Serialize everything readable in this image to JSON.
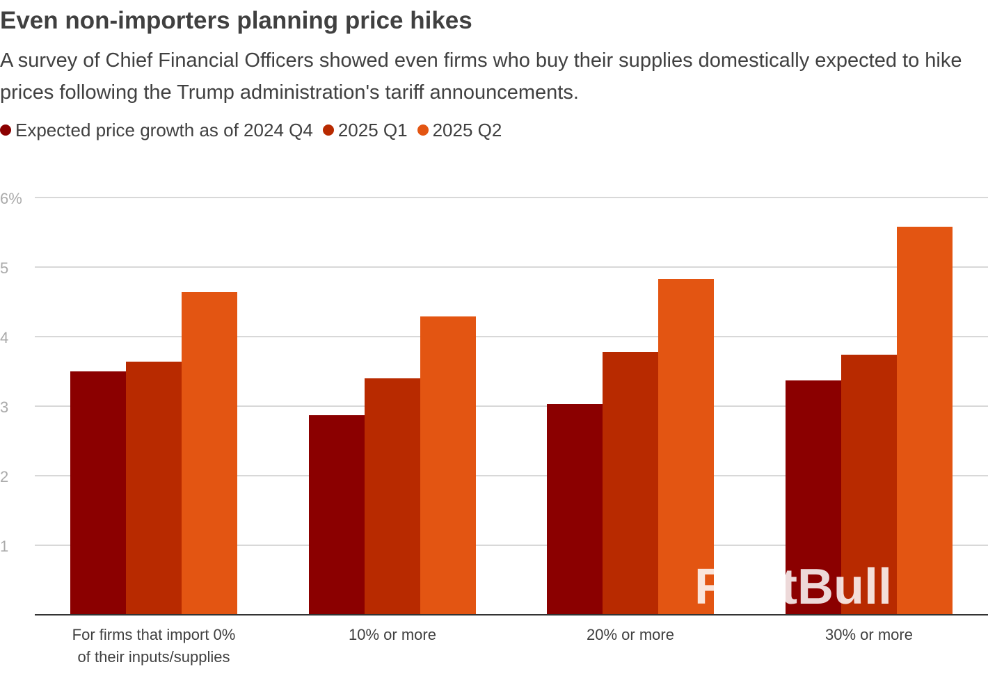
{
  "title": "Even non-importers planning price hikes",
  "subtitle": "A survey of Chief Financial Officers showed even firms who buy their supplies domestically expected to hike prices following the Trump administration's tariff announcements.",
  "watermark": "FastBull",
  "chart_data": {
    "type": "bar",
    "categories": [
      [
        "For firms that import 0%",
        "of their inputs/supplies"
      ],
      [
        "10% or more"
      ],
      [
        "20% or more"
      ],
      [
        "30% or more"
      ]
    ],
    "series": [
      {
        "name": "Expected price growth as of 2024 Q4",
        "color": "#8b0000",
        "values": [
          3.5,
          2.87,
          3.03,
          3.37
        ]
      },
      {
        "name": "2025 Q1",
        "color": "#b82a00",
        "values": [
          3.64,
          3.4,
          3.78,
          3.74
        ]
      },
      {
        "name": "2025 Q2",
        "color": "#e35512",
        "values": [
          4.64,
          4.29,
          4.83,
          5.58
        ]
      }
    ],
    "yticks": [
      "",
      "1",
      "2",
      "3",
      "4",
      "5",
      "6%"
    ],
    "ylim": [
      0,
      6
    ],
    "grid": true,
    "legend": "top-left"
  }
}
